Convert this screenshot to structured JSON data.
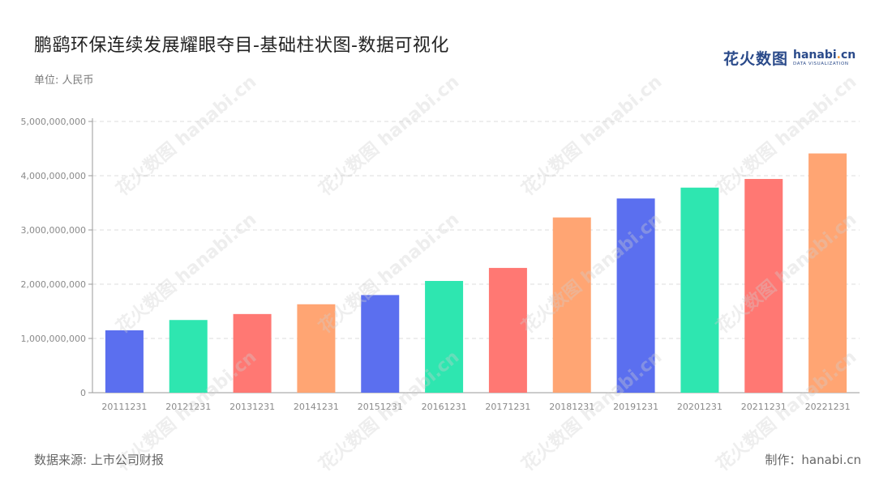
{
  "title": "鹏鹞环保连续发展耀眼夺目-基础柱状图-数据可视化",
  "unit_label": "单位: 人民币",
  "logo": {
    "cn": "花火数图",
    "en_main": "hanabi",
    "en_dot": ".",
    "en_tld": "cn",
    "en_sub": "DATA VISUALIZATION"
  },
  "source_label": "数据来源: 上市公司财报",
  "credit_label": "制作：hanabi.cn",
  "watermark_text": "花火数图 hanabi.cn",
  "colors": [
    "#5b6fef",
    "#2ee6b0",
    "#ff7873",
    "#ffa573"
  ],
  "chart_data": {
    "type": "bar",
    "categories": [
      "20111231",
      "20121231",
      "20131231",
      "20141231",
      "20151231",
      "20161231",
      "20171231",
      "20181231",
      "20191231",
      "20201231",
      "20211231",
      "20221231"
    ],
    "values": [
      1150000000,
      1340000000,
      1450000000,
      1630000000,
      1800000000,
      2060000000,
      2300000000,
      3230000000,
      3580000000,
      3780000000,
      3940000000,
      4410000000
    ],
    "ylim": [
      0,
      5000000000
    ],
    "yticks": [
      0,
      1000000000,
      2000000000,
      3000000000,
      4000000000,
      5000000000
    ],
    "ytick_labels": [
      "0",
      "1,000,000,000",
      "2,000,000,000",
      "3,000,000,000",
      "4,000,000,000",
      "5,000,000,000"
    ],
    "grid": true,
    "legend": false
  }
}
